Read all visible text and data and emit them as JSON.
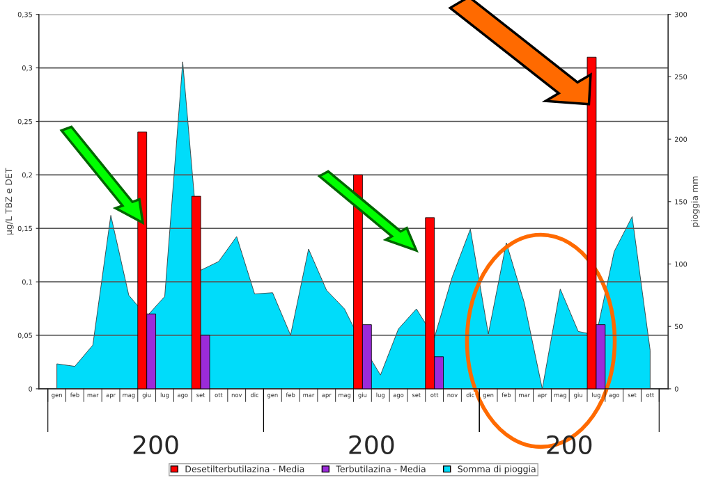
{
  "chart_data": {
    "type": "bar",
    "ylabel": "µg/L TBZ e DET",
    "y2label": "pioggia mm",
    "categories": [
      "gen",
      "feb",
      "mar",
      "apr",
      "mag",
      "giu",
      "lug",
      "ago",
      "set",
      "ott",
      "nov",
      "dic",
      "gen",
      "feb",
      "mar",
      "apr",
      "mag",
      "giu",
      "lug",
      "ago",
      "set",
      "ott",
      "nov",
      "dic",
      "gen",
      "feb",
      "mar",
      "apr",
      "mag",
      "giu",
      "lug",
      "ago",
      "set",
      "ott"
    ],
    "series": [
      {
        "name": "Desetilterbutilazina - Media",
        "color": "#ff0000",
        "values": [
          null,
          null,
          null,
          null,
          null,
          0.24,
          null,
          null,
          0.18,
          null,
          null,
          null,
          null,
          null,
          null,
          null,
          null,
          0.2,
          null,
          null,
          null,
          0.16,
          null,
          null,
          null,
          null,
          null,
          null,
          null,
          null,
          0.31,
          null,
          null,
          null
        ]
      },
      {
        "name": "Terbutilazina - Media",
        "color": "#9b2bd9",
        "values": [
          null,
          null,
          null,
          null,
          null,
          0.07,
          null,
          null,
          0.05,
          null,
          null,
          null,
          null,
          null,
          null,
          null,
          null,
          0.06,
          null,
          null,
          null,
          0.03,
          null,
          null,
          null,
          null,
          null,
          null,
          null,
          null,
          0.06,
          null,
          null,
          null
        ]
      },
      {
        "name": "Somma di pioggia",
        "type": "area",
        "axis": "y2",
        "color": "#00dcfa",
        "values": [
          20,
          18,
          35,
          139,
          75,
          58,
          74,
          262,
          95,
          102,
          122,
          76,
          77,
          43,
          112,
          79,
          64,
          35,
          11,
          48,
          64,
          41,
          90,
          128,
          44,
          117,
          69,
          0,
          80,
          46,
          43,
          110,
          138,
          31
        ]
      }
    ],
    "ylim": [
      0,
      0.35
    ],
    "yticks": [
      0,
      {
        "value": 0.05,
        "label": "0,05"
      },
      {
        "value": 0.1,
        "label": "0,1"
      },
      {
        "value": 0.15,
        "label": "0,15"
      },
      {
        "value": 0.2,
        "label": "0,2"
      },
      {
        "value": 0.25,
        "label": "0,25"
      },
      {
        "value": 0.3,
        "label": "0,3"
      },
      {
        "value": 0.35,
        "label": "0,35"
      }
    ],
    "y2lim": [
      0,
      300
    ],
    "y2ticks": [
      0,
      50,
      100,
      150,
      200,
      250,
      300
    ],
    "grid": "y",
    "legend": "bottom",
    "annotations": [
      "200",
      "200",
      "200"
    ]
  }
}
